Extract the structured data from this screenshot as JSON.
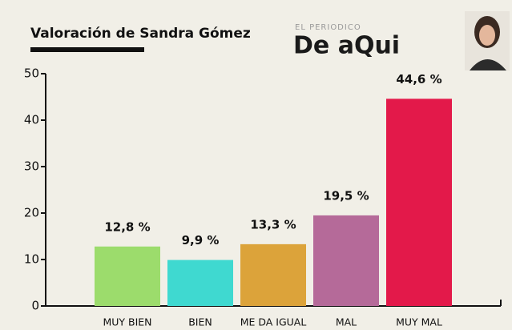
{
  "chart_data": {
    "type": "bar",
    "title": "Valoración de Sandra Gómez",
    "categories": [
      "MUY BIEN",
      "BIEN",
      "ME DA IGUAL",
      "MAL",
      "MUY MAL"
    ],
    "values": [
      12.8,
      9.9,
      13.3,
      19.5,
      44.6
    ],
    "value_labels": [
      "12,8 %",
      "9,9 %",
      "13,3 %",
      "19,5 %",
      "44,6 %"
    ],
    "colors": [
      "#9cdc6c",
      "#3fd9d0",
      "#dca33a",
      "#b56a99",
      "#e3194a"
    ],
    "ylim": [
      0,
      50
    ],
    "yticks": [
      0,
      10,
      20,
      30,
      40,
      50
    ]
  },
  "logo": {
    "top": "EL PERIODICO",
    "main": "De aQui"
  }
}
